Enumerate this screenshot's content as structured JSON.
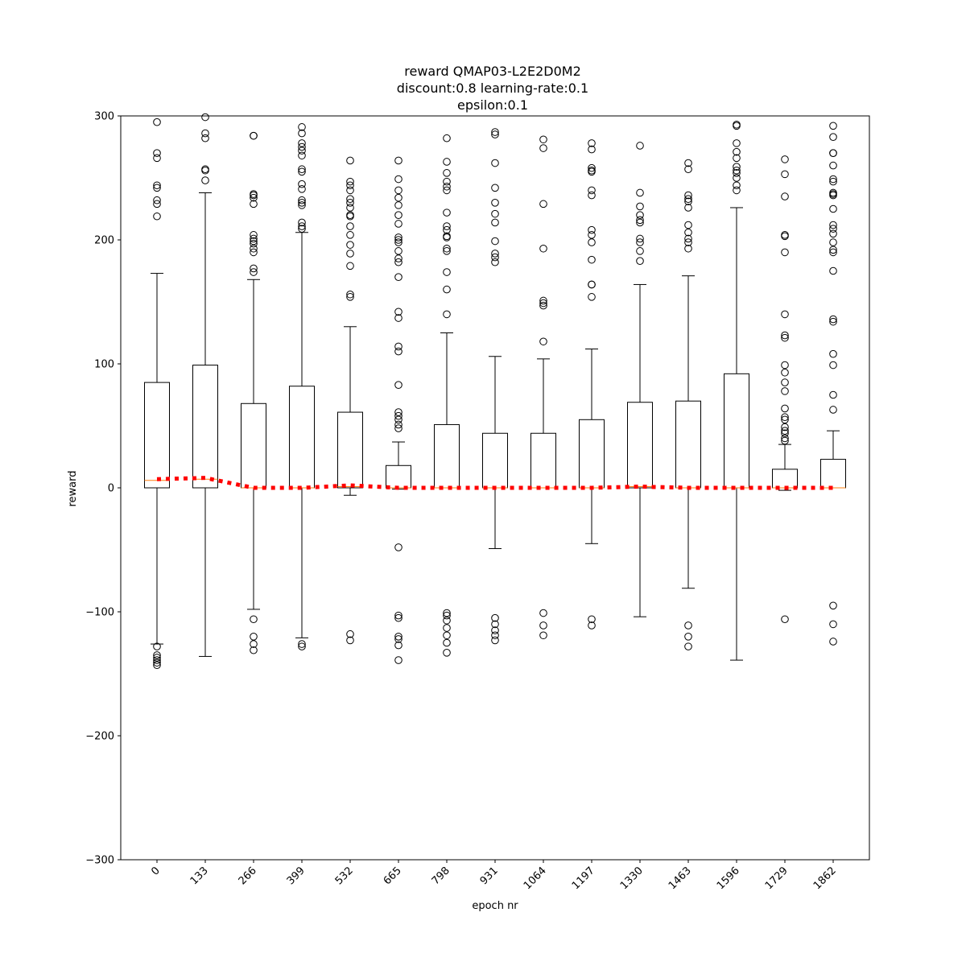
{
  "chart_data": {
    "type": "box",
    "title_lines": [
      "reward QMAP03-L2E2D0M2",
      "discount:0.8 learning-rate:0.1",
      "epsilon:0.1"
    ],
    "xlabel": "epoch nr",
    "ylabel": "reward",
    "ylim": [
      -300,
      300
    ],
    "yticks": [
      -300,
      -200,
      -100,
      0,
      100,
      200,
      300
    ],
    "yticks_labels": [
      "−300",
      "−200",
      "−100",
      "0",
      "100",
      "200",
      "300"
    ],
    "grid": false,
    "colors": {
      "box": "#000000",
      "median": "#ff7f0e",
      "mean_line": "#ff0000"
    },
    "categories": [
      "0",
      "133",
      "266",
      "399",
      "532",
      "665",
      "798",
      "931",
      "1064",
      "1197",
      "1330",
      "1463",
      "1596",
      "1729",
      "1862"
    ],
    "boxes": [
      {
        "q1": 0,
        "median": 6,
        "q3": 85,
        "whisker_low": -126,
        "whisker_high": 173,
        "fliers": [
          295,
          270,
          266,
          244,
          242,
          232,
          229,
          219,
          -128,
          -135,
          -137,
          -139,
          -141,
          -143
        ]
      },
      {
        "q1": 0,
        "median": 7,
        "q3": 99,
        "whisker_low": -136,
        "whisker_high": 238,
        "fliers": [
          299,
          286,
          282,
          257,
          256,
          248
        ]
      },
      {
        "q1": 0,
        "median": 0,
        "q3": 68,
        "whisker_low": -98,
        "whisker_high": 168,
        "fliers": [
          284,
          284,
          237,
          236,
          234,
          229,
          204,
          201,
          199,
          197,
          193,
          190,
          177,
          174,
          -106,
          -120,
          -126,
          -131
        ]
      },
      {
        "q1": 0,
        "median": 0,
        "q3": 82,
        "whisker_low": -121,
        "whisker_high": 206,
        "fliers": [
          291,
          286,
          278,
          275,
          272,
          268,
          257,
          255,
          245,
          241,
          232,
          230,
          228,
          214,
          211,
          209,
          -126,
          -128
        ]
      },
      {
        "q1": 0,
        "median": 1,
        "q3": 61,
        "whisker_low": -6,
        "whisker_high": 130,
        "fliers": [
          264,
          247,
          244,
          240,
          233,
          230,
          226,
          220,
          219,
          211,
          204,
          196,
          189,
          179,
          156,
          154,
          -118,
          -123
        ]
      },
      {
        "q1": 0,
        "median": 0,
        "q3": 18,
        "whisker_low": -1,
        "whisker_high": 37,
        "fliers": [
          264,
          249,
          240,
          234,
          228,
          220,
          213,
          202,
          200,
          198,
          191,
          185,
          182,
          170,
          142,
          137,
          114,
          110,
          83,
          61,
          58,
          55,
          51,
          48,
          -48,
          -103,
          -105,
          -120,
          -122,
          -127,
          -139
        ]
      },
      {
        "q1": 0,
        "median": 0,
        "q3": 51,
        "whisker_low": 0,
        "whisker_high": 125,
        "fliers": [
          282,
          263,
          254,
          247,
          243,
          240,
          222,
          211,
          208,
          203,
          202,
          193,
          191,
          174,
          160,
          140,
          -101,
          -103,
          -107,
          -113,
          -119,
          -125,
          -133
        ]
      },
      {
        "q1": 0,
        "median": 0,
        "q3": 44,
        "whisker_low": -49,
        "whisker_high": 106,
        "fliers": [
          287,
          285,
          262,
          242,
          230,
          221,
          214,
          199,
          189,
          186,
          182,
          -105,
          -110,
          -115,
          -119,
          -123
        ]
      },
      {
        "q1": 0,
        "median": 0,
        "q3": 44,
        "whisker_low": 0,
        "whisker_high": 104,
        "fliers": [
          281,
          274,
          229,
          193,
          151,
          149,
          147,
          118,
          -101,
          -111,
          -119
        ]
      },
      {
        "q1": 0,
        "median": 0,
        "q3": 55,
        "whisker_low": -45,
        "whisker_high": 112,
        "fliers": [
          278,
          273,
          258,
          256,
          255,
          240,
          236,
          208,
          204,
          198,
          184,
          164,
          164,
          154,
          -106,
          -111
        ]
      },
      {
        "q1": 0,
        "median": 1,
        "q3": 69,
        "whisker_low": -104,
        "whisker_high": 164,
        "fliers": [
          276,
          238,
          227,
          220,
          216,
          214,
          201,
          198,
          191,
          183
        ]
      },
      {
        "q1": 0,
        "median": 0,
        "q3": 70,
        "whisker_low": -81,
        "whisker_high": 171,
        "fliers": [
          262,
          257,
          236,
          233,
          231,
          226,
          212,
          206,
          201,
          198,
          193,
          -111,
          -120,
          -128
        ]
      },
      {
        "q1": 0,
        "median": 0,
        "q3": 92,
        "whisker_low": -139,
        "whisker_high": 226,
        "fliers": [
          293,
          292,
          278,
          271,
          266,
          259,
          256,
          254,
          250,
          244,
          240
        ]
      },
      {
        "q1": 0,
        "median": 0,
        "q3": 15,
        "whisker_low": -2,
        "whisker_high": 35,
        "fliers": [
          265,
          253,
          235,
          204,
          203,
          190,
          140,
          123,
          121,
          99,
          93,
          85,
          78,
          64,
          57,
          55,
          49,
          46,
          44,
          40,
          38,
          -106
        ]
      },
      {
        "q1": 0,
        "median": 0,
        "q3": 23,
        "whisker_low": 0,
        "whisker_high": 46,
        "fliers": [
          292,
          283,
          270,
          270,
          260,
          249,
          247,
          238,
          237,
          236,
          225,
          212,
          209,
          205,
          198,
          192,
          190,
          175,
          136,
          134,
          108,
          99,
          75,
          63,
          -95,
          -110,
          -124
        ]
      }
    ],
    "mean_line": [
      7,
      8,
      0,
      0,
      2,
      0,
      0,
      0,
      0,
      0,
      1,
      0,
      0,
      0,
      0
    ]
  }
}
